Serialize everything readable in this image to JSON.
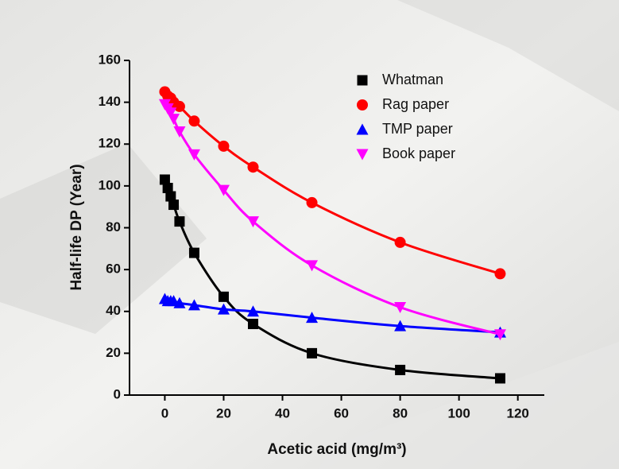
{
  "chart_data": {
    "type": "scatter-fit",
    "x_label": "Acetic acid (mg/m³)",
    "y_label": "Half-life DP (Year)",
    "xlim": [
      -12,
      129
    ],
    "ylim": [
      0,
      160
    ],
    "xticks": [
      0,
      20,
      40,
      60,
      80,
      100,
      120
    ],
    "yticks": [
      0,
      20,
      40,
      60,
      80,
      100,
      120,
      140,
      160
    ],
    "x": [
      0,
      1,
      2,
      3,
      5,
      10,
      20,
      30,
      50,
      80,
      114
    ],
    "series": [
      {
        "name": "Whatman",
        "color": "#000000",
        "marker": "square",
        "values": [
          103,
          99,
          95,
          91,
          83,
          68,
          47,
          34,
          20,
          12,
          8
        ]
      },
      {
        "name": "Rag paper",
        "color": "#ff0000",
        "marker": "circle",
        "values": [
          145,
          143,
          142,
          140,
          138,
          131,
          119,
          109,
          92,
          73,
          58
        ]
      },
      {
        "name": "TMP paper",
        "color": "#0000ff",
        "marker": "triangle-up",
        "values": [
          46,
          45,
          45,
          45,
          44,
          43,
          41,
          40,
          37,
          33,
          30
        ]
      },
      {
        "name": "Book paper",
        "color": "#ff00ff",
        "marker": "triangle-down",
        "values": [
          139,
          137,
          135,
          132,
          126,
          115,
          98,
          83,
          62,
          42,
          29
        ]
      }
    ]
  }
}
